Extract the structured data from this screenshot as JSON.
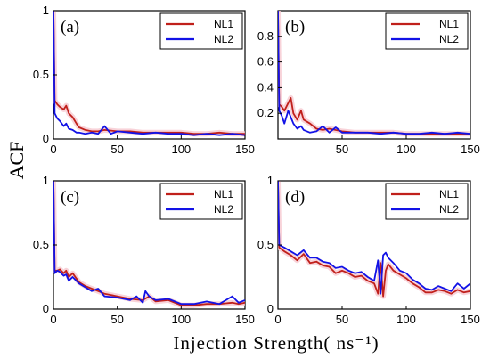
{
  "figure": {
    "ylabel": "ACF",
    "xlabel": "Injection Strength( ns⁻¹)"
  },
  "colors": {
    "NL1": "#c0201b",
    "NL2": "#1212e6",
    "band": "#f6c8d0"
  },
  "chart_data": [
    {
      "type": "line",
      "panel_label": "(a)",
      "xlim": [
        0,
        150
      ],
      "ylim": [
        0,
        1
      ],
      "xticks": [
        "0",
        "50",
        "100",
        "150"
      ],
      "yticks": [
        "0",
        "0.5",
        "1"
      ],
      "legend": [
        "NL1",
        "NL2"
      ],
      "legend_position": "top-right",
      "series": [
        {
          "name": "NL1",
          "x": [
            0,
            1,
            3,
            5,
            8,
            10,
            12,
            15,
            18,
            20,
            25,
            30,
            35,
            40,
            50,
            60,
            70,
            80,
            90,
            100,
            110,
            120,
            130,
            140,
            150
          ],
          "values": [
            1.0,
            0.3,
            0.27,
            0.25,
            0.23,
            0.26,
            0.2,
            0.17,
            0.12,
            0.09,
            0.07,
            0.06,
            0.06,
            0.07,
            0.06,
            0.06,
            0.05,
            0.05,
            0.05,
            0.05,
            0.04,
            0.04,
            0.05,
            0.04,
            0.04
          ]
        },
        {
          "name": "NL2",
          "x": [
            0,
            1,
            3,
            5,
            8,
            10,
            12,
            15,
            18,
            20,
            25,
            30,
            35,
            40,
            45,
            50,
            60,
            70,
            80,
            90,
            100,
            110,
            120,
            130,
            140,
            150
          ],
          "values": [
            1.0,
            0.2,
            0.16,
            0.14,
            0.1,
            0.12,
            0.08,
            0.07,
            0.05,
            0.05,
            0.04,
            0.05,
            0.04,
            0.1,
            0.04,
            0.06,
            0.05,
            0.04,
            0.05,
            0.04,
            0.04,
            0.03,
            0.04,
            0.03,
            0.04,
            0.03
          ]
        }
      ]
    },
    {
      "type": "line",
      "panel_label": "(b)",
      "xlim": [
        0,
        150
      ],
      "ylim": [
        0,
        1
      ],
      "xticks": [
        "50",
        "100",
        "150"
      ],
      "yticks": [
        "0.2",
        "0.4",
        "0.6",
        "0.8"
      ],
      "legend": [
        "NL1",
        "NL2"
      ],
      "legend_position": "top-right",
      "series": [
        {
          "name": "NL1",
          "x": [
            0,
            1,
            3,
            5,
            8,
            10,
            12,
            15,
            18,
            20,
            25,
            30,
            35,
            40,
            50,
            60,
            70,
            80,
            90,
            100,
            110,
            120,
            130,
            140,
            150
          ],
          "values": [
            1.0,
            0.27,
            0.25,
            0.22,
            0.28,
            0.32,
            0.2,
            0.15,
            0.22,
            0.15,
            0.12,
            0.08,
            0.07,
            0.08,
            0.06,
            0.05,
            0.05,
            0.05,
            0.05,
            0.04,
            0.04,
            0.04,
            0.04,
            0.04,
            0.04
          ]
        },
        {
          "name": "NL2",
          "x": [
            0,
            1,
            3,
            5,
            8,
            10,
            12,
            15,
            18,
            20,
            25,
            30,
            35,
            40,
            45,
            50,
            60,
            70,
            80,
            90,
            100,
            110,
            120,
            130,
            140,
            150
          ],
          "values": [
            1.0,
            0.22,
            0.18,
            0.12,
            0.22,
            0.17,
            0.12,
            0.08,
            0.1,
            0.07,
            0.05,
            0.06,
            0.1,
            0.05,
            0.09,
            0.05,
            0.05,
            0.05,
            0.04,
            0.05,
            0.04,
            0.04,
            0.05,
            0.04,
            0.05,
            0.04
          ]
        }
      ]
    },
    {
      "type": "line",
      "panel_label": "(c)",
      "xlim": [
        0,
        150
      ],
      "ylim": [
        0,
        1
      ],
      "xticks": [
        "0",
        "50",
        "100",
        "150"
      ],
      "yticks": [
        "0",
        "0.5",
        "1"
      ],
      "legend": [
        "NL1",
        "NL2"
      ],
      "legend_position": "top-right",
      "series": [
        {
          "name": "NL1",
          "x": [
            0,
            1,
            3,
            5,
            8,
            10,
            12,
            15,
            20,
            25,
            30,
            35,
            40,
            50,
            60,
            70,
            75,
            80,
            90,
            100,
            110,
            120,
            130,
            140,
            145,
            150
          ],
          "values": [
            1.0,
            0.3,
            0.3,
            0.31,
            0.28,
            0.3,
            0.25,
            0.28,
            0.21,
            0.18,
            0.16,
            0.14,
            0.12,
            0.1,
            0.08,
            0.07,
            0.1,
            0.06,
            0.07,
            0.03,
            0.03,
            0.04,
            0.04,
            0.05,
            0.04,
            0.05
          ]
        },
        {
          "name": "NL2",
          "x": [
            0,
            1,
            3,
            5,
            8,
            10,
            12,
            15,
            20,
            25,
            30,
            35,
            40,
            50,
            60,
            65,
            70,
            72,
            75,
            80,
            90,
            100,
            110,
            120,
            130,
            140,
            145,
            150
          ],
          "values": [
            1.0,
            0.28,
            0.3,
            0.29,
            0.26,
            0.27,
            0.22,
            0.25,
            0.2,
            0.17,
            0.14,
            0.16,
            0.1,
            0.09,
            0.07,
            0.1,
            0.05,
            0.14,
            0.1,
            0.07,
            0.08,
            0.04,
            0.04,
            0.06,
            0.04,
            0.1,
            0.05,
            0.07
          ]
        }
      ]
    },
    {
      "type": "line",
      "panel_label": "(d)",
      "xlim": [
        0,
        150
      ],
      "ylim": [
        0,
        1
      ],
      "xticks": [
        "0",
        "50",
        "100",
        "150"
      ],
      "yticks": [
        "0",
        "0.5",
        "1"
      ],
      "legend": [
        "NL1",
        "NL2"
      ],
      "legend_position": "top-right",
      "series": [
        {
          "name": "NL1",
          "x": [
            0,
            1,
            5,
            10,
            15,
            20,
            25,
            30,
            35,
            40,
            45,
            50,
            55,
            60,
            65,
            70,
            75,
            78,
            80,
            82,
            84,
            86,
            90,
            95,
            100,
            105,
            110,
            115,
            120,
            125,
            130,
            135,
            140,
            145,
            150
          ],
          "values": [
            1.0,
            0.48,
            0.45,
            0.42,
            0.38,
            0.43,
            0.36,
            0.37,
            0.34,
            0.33,
            0.28,
            0.3,
            0.28,
            0.25,
            0.26,
            0.22,
            0.2,
            0.12,
            0.36,
            0.1,
            0.3,
            0.35,
            0.3,
            0.27,
            0.24,
            0.2,
            0.17,
            0.13,
            0.13,
            0.15,
            0.14,
            0.12,
            0.15,
            0.13,
            0.14
          ]
        },
        {
          "name": "NL2",
          "x": [
            0,
            1,
            5,
            10,
            15,
            20,
            25,
            30,
            35,
            40,
            45,
            50,
            55,
            60,
            65,
            70,
            75,
            78,
            80,
            82,
            84,
            86,
            90,
            95,
            100,
            105,
            110,
            115,
            120,
            125,
            130,
            135,
            140,
            145,
            150
          ],
          "values": [
            1.0,
            0.5,
            0.48,
            0.45,
            0.42,
            0.46,
            0.4,
            0.4,
            0.37,
            0.36,
            0.32,
            0.33,
            0.3,
            0.28,
            0.29,
            0.25,
            0.22,
            0.38,
            0.12,
            0.42,
            0.44,
            0.4,
            0.36,
            0.3,
            0.28,
            0.23,
            0.2,
            0.16,
            0.15,
            0.18,
            0.16,
            0.14,
            0.2,
            0.16,
            0.2
          ]
        }
      ]
    }
  ]
}
